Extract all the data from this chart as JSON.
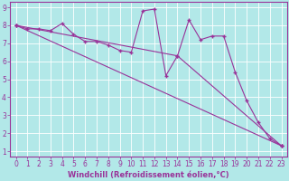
{
  "xlabel": "Windchill (Refroidissement éolien,°C)",
  "background_color": "#b2e8e8",
  "grid_color": "#c8e8e8",
  "line_color": "#993399",
  "xlim": [
    -0.5,
    23.5
  ],
  "ylim": [
    0.7,
    9.3
  ],
  "xticks": [
    0,
    1,
    2,
    3,
    4,
    5,
    6,
    7,
    8,
    9,
    10,
    11,
    12,
    13,
    14,
    15,
    16,
    17,
    18,
    19,
    20,
    21,
    22,
    23
  ],
  "yticks": [
    1,
    2,
    3,
    4,
    5,
    6,
    7,
    8,
    9
  ],
  "series1_x": [
    0,
    1,
    2,
    3,
    4,
    5,
    6,
    7,
    8,
    9,
    10,
    11,
    12,
    13,
    14,
    15,
    16,
    17,
    18,
    19,
    20,
    21,
    22,
    23
  ],
  "series1_y": [
    8.0,
    7.8,
    7.8,
    7.7,
    8.1,
    7.5,
    7.1,
    7.1,
    6.9,
    6.6,
    6.5,
    8.8,
    8.9,
    5.2,
    6.3,
    8.3,
    7.2,
    7.4,
    7.4,
    5.4,
    3.8,
    2.6,
    1.7,
    1.3
  ],
  "series2_x": [
    0,
    23
  ],
  "series2_y": [
    8.0,
    1.3
  ],
  "series3_x": [
    0,
    14,
    23
  ],
  "series3_y": [
    8.0,
    6.3,
    1.3
  ],
  "tick_color": "#993399",
  "spine_color": "#993399",
  "xlabel_color": "#993399",
  "xlabel_fontsize": 6.0,
  "tick_fontsize": 5.5,
  "linewidth": 0.8,
  "markersize": 3.5,
  "markeredgewidth": 1.0
}
